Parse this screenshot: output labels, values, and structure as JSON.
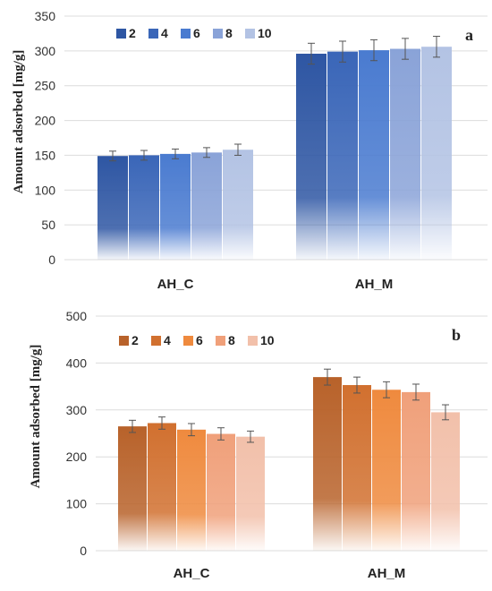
{
  "chart_data": [
    {
      "type": "bar",
      "panel_label": "a",
      "categories": [
        "AH_C",
        "AH_M"
      ],
      "ylabel": "Amount adsorbed [mg/g]",
      "ylim": [
        0,
        350
      ],
      "yticks": [
        0,
        50,
        100,
        150,
        200,
        250,
        300,
        350
      ],
      "grid": true,
      "legend_position": "top-left",
      "series": [
        {
          "name": "2",
          "color": "#2e56a3",
          "values": [
            149,
            296
          ],
          "errors": [
            7,
            15
          ]
        },
        {
          "name": "4",
          "color": "#3a66b8",
          "values": [
            150,
            299
          ],
          "errors": [
            7,
            15
          ]
        },
        {
          "name": "6",
          "color": "#4a7bd0",
          "values": [
            152,
            301
          ],
          "errors": [
            7,
            15
          ]
        },
        {
          "name": "8",
          "color": "#8aa3d8",
          "values": [
            154,
            303
          ],
          "errors": [
            7,
            15
          ]
        },
        {
          "name": "10",
          "color": "#b3c3e4",
          "values": [
            158,
            306
          ],
          "errors": [
            8,
            15
          ]
        }
      ]
    },
    {
      "type": "bar",
      "panel_label": "b",
      "categories": [
        "AH_C",
        "AH_M"
      ],
      "ylabel": "Amount adsorbed [mg/g]",
      "ylim": [
        0,
        500
      ],
      "yticks": [
        0,
        100,
        200,
        300,
        400,
        500
      ],
      "grid": true,
      "legend_position": "top-left",
      "series": [
        {
          "name": "2",
          "color": "#b8622a",
          "values": [
            265,
            370
          ],
          "errors": [
            13,
            17
          ]
        },
        {
          "name": "4",
          "color": "#d1702f",
          "values": [
            272,
            353
          ],
          "errors": [
            13,
            17
          ]
        },
        {
          "name": "6",
          "color": "#ef8a3e",
          "values": [
            258,
            343
          ],
          "errors": [
            13,
            17
          ]
        },
        {
          "name": "8",
          "color": "#f0a07a",
          "values": [
            249,
            338
          ],
          "errors": [
            13,
            17
          ]
        },
        {
          "name": "10",
          "color": "#f2c0aa",
          "values": [
            243,
            295
          ],
          "errors": [
            12,
            16
          ]
        }
      ]
    }
  ]
}
